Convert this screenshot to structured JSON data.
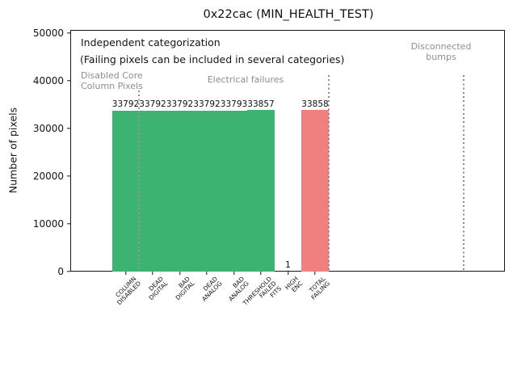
{
  "figure": {
    "background": "#ffffff"
  },
  "chart_data": {
    "type": "bar",
    "title": "0x22cac (MIN_HEALTH_TEST)",
    "xlabel": "",
    "ylabel": "Number of pixels",
    "ylim": [
      0,
      50700
    ],
    "yticks": [
      0,
      10000,
      20000,
      30000,
      40000,
      50000
    ],
    "ytick_labels": [
      "0",
      "10000",
      "20000",
      "30000",
      "40000",
      "50000"
    ],
    "grid": false,
    "legend": null,
    "categories": [
      [
        "COLUMN",
        "DISABLED"
      ],
      [
        "DEAD",
        "DIGITAL"
      ],
      [
        "BAD",
        "DIGITAL"
      ],
      [
        "DEAD",
        "ANALOG"
      ],
      [
        "BAD",
        "ANALOG"
      ],
      [
        "THRESHOLD",
        "FAILED",
        "FITS"
      ],
      [
        "HIGH",
        "ENC"
      ],
      [
        "TOTAL",
        "FAILING"
      ]
    ],
    "values": [
      33792,
      33792,
      33792,
      33792,
      33793,
      33857,
      1,
      33858
    ],
    "value_labels": [
      "33792",
      "33792",
      "33792",
      "33792",
      "33793",
      "33857",
      "1",
      "33858"
    ],
    "bar_colors": [
      "#3cb371",
      "#3cb371",
      "#3cb371",
      "#3cb371",
      "#3cb371",
      "#3cb371",
      "#3cb371",
      "#f08080"
    ],
    "colors": {
      "bar_green": "#3cb371",
      "bar_red": "#f08080",
      "gray_text": "#8e8e8e",
      "divider_gray": "#8d8d8d",
      "divider_over_bar": "#ad8f92"
    },
    "dividers": [
      {
        "x_data": 0.5,
        "color": "#ad8f92"
      },
      {
        "x_data": 7.5,
        "color": "#8d8d8d"
      },
      {
        "x_data": 12.5,
        "color": "#8d8d8d"
      }
    ],
    "annotations": {
      "independent": {
        "text": "Independent categorization"
      },
      "failing_note": {
        "text": "(Failing pixels can be included in several categories)"
      },
      "disabled_core": {
        "line1": "Disabled Core",
        "line2": "Column Pixels"
      },
      "electrical": {
        "text": "Electrical failures"
      },
      "disconnected": {
        "line1": "Disconnected",
        "line2": "bumps"
      }
    }
  }
}
